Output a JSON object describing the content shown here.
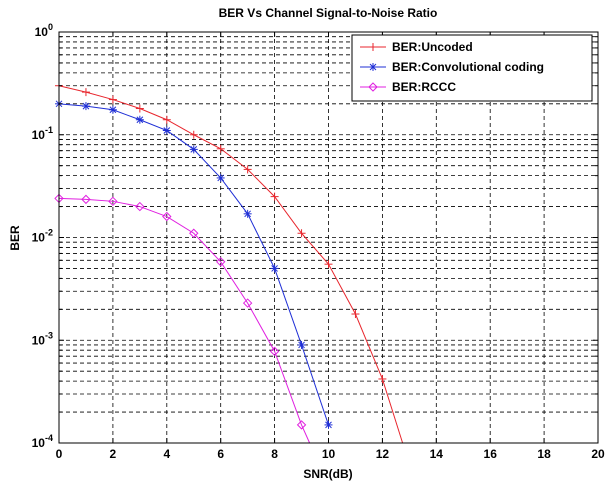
{
  "chart_data": {
    "type": "line",
    "title": "BER Vs Channel Signal-to-Noise Ratio",
    "xlabel": "SNR(dB)",
    "ylabel": "BER",
    "xlim": [
      0,
      20
    ],
    "ylim": [
      0.0001,
      1
    ],
    "yscale": "log",
    "grid": true,
    "legend_position": "top-right",
    "x_ticks": [
      0,
      2,
      4,
      6,
      8,
      10,
      12,
      14,
      16,
      18,
      20
    ],
    "y_ticks": [
      {
        "value": 1,
        "base": "10",
        "exp": "0"
      },
      {
        "value": 0.1,
        "base": "10",
        "exp": "-1"
      },
      {
        "value": 0.01,
        "base": "10",
        "exp": "-2"
      },
      {
        "value": 0.001,
        "base": "10",
        "exp": "-3"
      },
      {
        "value": 0.0001,
        "base": "10",
        "exp": "-4"
      }
    ],
    "series": [
      {
        "name": "BER:Uncoded",
        "color": "#e8262d",
        "marker": "plus",
        "x": [
          0,
          1,
          2,
          3,
          4,
          5,
          6,
          7,
          8,
          9,
          10,
          11,
          12,
          12.75
        ],
        "y": [
          0.3,
          0.26,
          0.22,
          0.18,
          0.14,
          0.1,
          0.073,
          0.046,
          0.025,
          0.011,
          0.0055,
          0.0018,
          0.00042,
          0.0001
        ]
      },
      {
        "name": "BER:Convolutional coding",
        "color": "#1f2fd6",
        "marker": "star",
        "x": [
          0,
          1,
          2,
          3,
          4,
          5,
          6,
          7,
          8,
          9,
          10
        ],
        "y": [
          0.2,
          0.19,
          0.175,
          0.14,
          0.11,
          0.072,
          0.038,
          0.017,
          0.005,
          0.0009,
          0.00015
        ]
      },
      {
        "name": "BER:RCCC",
        "color": "#e020e0",
        "marker": "diamond",
        "x": [
          0,
          1,
          2,
          3,
          4,
          5,
          6,
          7,
          8,
          9,
          9.3
        ],
        "y": [
          0.024,
          0.0235,
          0.0225,
          0.02,
          0.016,
          0.011,
          0.0058,
          0.0023,
          0.00078,
          0.00015,
          0.0001
        ]
      }
    ]
  }
}
